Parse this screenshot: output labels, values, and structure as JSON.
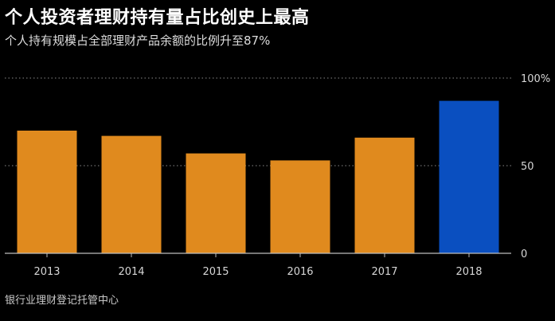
{
  "title": "个人投资者理财持有量占比创史上最高",
  "subtitle": "个人持有规模占全部理财产品余额的比例升至87%",
  "source": "银行业理财登记托管中心",
  "chart_data": {
    "type": "bar",
    "categories": [
      "2013",
      "2014",
      "2015",
      "2016",
      "2017",
      "2018"
    ],
    "values": [
      70,
      67,
      57,
      53,
      66,
      87
    ],
    "ylim": [
      0,
      100
    ],
    "yticks": [
      {
        "value": 0,
        "label": "0"
      },
      {
        "value": 50,
        "label": "50"
      },
      {
        "value": 100,
        "label": "100%"
      }
    ],
    "grid": true,
    "colors": {
      "default": "#e08a1e",
      "highlight": "#0a4fc0",
      "highlight_index": 5,
      "grid": "#8a8a8a",
      "axis": "#bdbdbd"
    }
  }
}
